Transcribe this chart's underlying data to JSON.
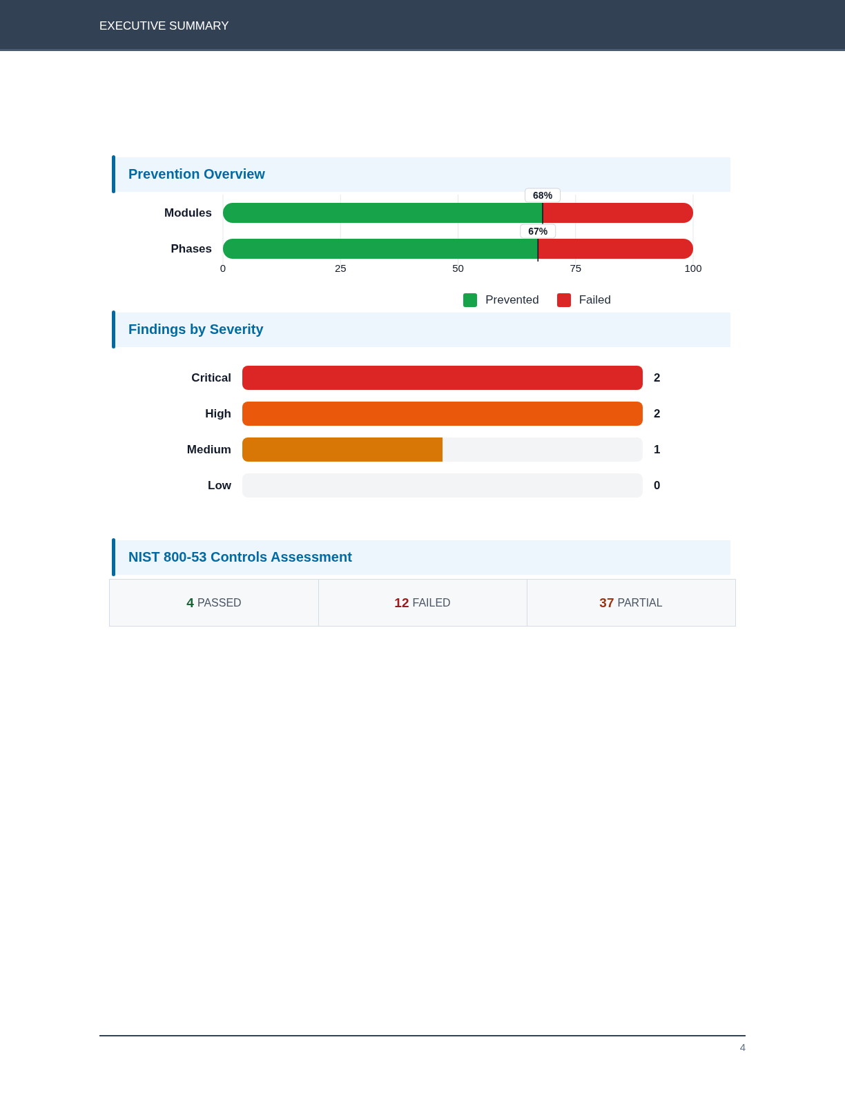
{
  "chart_data": [
    {
      "type": "bar",
      "title": "Prevention Overview",
      "annotations": [
        "EXECUTIVE SUMMARY"
      ],
      "orientation": "horizontal",
      "stacked": true,
      "categories": [
        "Modules",
        "Phases"
      ],
      "series": [
        {
          "name": "Prevented",
          "color": "#16a34a",
          "values": [
            68,
            67
          ],
          "value_labels": [
            "68%",
            "67%"
          ]
        },
        {
          "name": "Failed",
          "color": "#dc2626",
          "values": [
            32,
            33
          ]
        }
      ],
      "xlim": [
        0,
        100
      ],
      "xticks": [
        0,
        25,
        50,
        75,
        100
      ],
      "grid": "x",
      "legend": "bottom right"
    },
    {
      "type": "bar",
      "title": "Findings by Severity",
      "orientation": "horizontal",
      "stacked": true,
      "categories": [
        "Critical",
        "High",
        "Medium",
        "Low"
      ],
      "series": [
        {
          "colors": [
            "#dc2626",
            "#ea580c",
            "#d97706",
            null
          ],
          "values": [
            2,
            2,
            1,
            0
          ],
          "value_labels": [
            "2",
            "2",
            "1",
            "0"
          ]
        },
        {
          "color": "#f3f4f6",
          "values": [
            0,
            0,
            1,
            2
          ]
        }
      ],
      "tick_labels": "y"
    },
    {
      "type": "other",
      "title": "NIST 800-53 Controls Assessment",
      "categories": [
        "PASSED",
        "FAILED",
        "PARTIAL"
      ],
      "values": [
        4,
        12,
        37
      ],
      "data_labels": true,
      "annotations": [
        "4"
      ]
    }
  ]
}
